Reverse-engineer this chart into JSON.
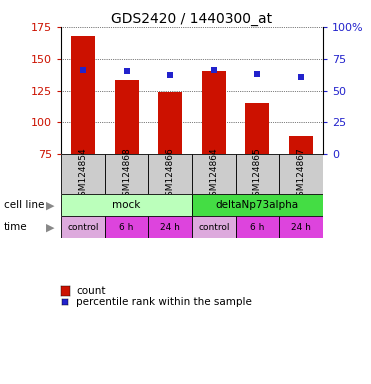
{
  "title": "GDS2420 / 1440300_at",
  "samples": [
    "GSM124854",
    "GSM124868",
    "GSM124866",
    "GSM124864",
    "GSM124865",
    "GSM124867"
  ],
  "counts": [
    168,
    133,
    124,
    140,
    115,
    89
  ],
  "percentile_ranks": [
    66,
    65,
    62,
    66,
    63,
    61
  ],
  "ymin": 75,
  "ymax": 175,
  "yticks_left": [
    75,
    100,
    125,
    150,
    175
  ],
  "yticks_right_vals": [
    0,
    25,
    50,
    75,
    100
  ],
  "bar_color": "#cc1100",
  "percentile_color": "#2222cc",
  "cell_line_labels": [
    "mock",
    "deltaNp73alpha"
  ],
  "cell_line_spans": [
    [
      0,
      3
    ],
    [
      3,
      6
    ]
  ],
  "cell_line_colors_light": "#bbffbb",
  "cell_line_colors_dark": "#44dd44",
  "time_labels": [
    "control",
    "6 h",
    "24 h",
    "control",
    "6 h",
    "24 h"
  ],
  "time_color_control": "#ddaadd",
  "time_color_h": "#dd44dd",
  "label_color_left": "#cc1100",
  "label_color_right": "#2222cc",
  "gray_box": "#cccccc",
  "legend_count_color": "#cc1100",
  "legend_percentile_color": "#2222cc"
}
